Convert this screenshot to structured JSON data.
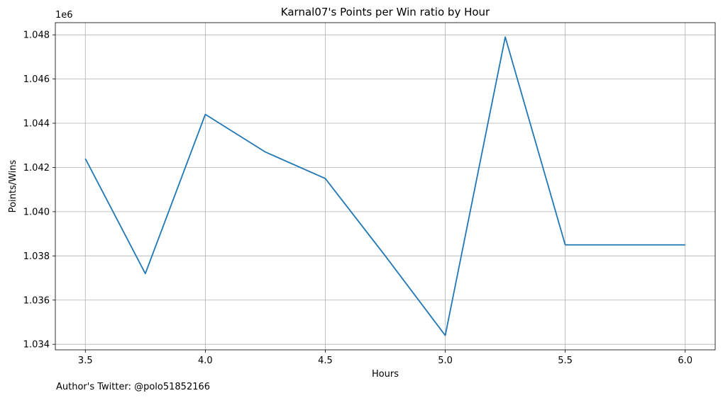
{
  "chart_data": {
    "type": "line",
    "title": "Karnal07's Points per Win ratio by Hour",
    "xlabel": "Hours",
    "ylabel": "Points/Wins",
    "y_offset_label": "1e6",
    "caption": "Author's Twitter: @polo51852166",
    "grid": true,
    "line_color": "#1f77b4",
    "grid_color": "#b0b0b0",
    "xlim": [
      3.375,
      6.125
    ],
    "ylim": [
      1.03375,
      1.04855
    ],
    "x_ticks": [
      3.5,
      4.0,
      4.5,
      5.0,
      5.5,
      6.0
    ],
    "x_tick_labels": [
      "3.5",
      "4.0",
      "4.5",
      "5.0",
      "5.5",
      "6.0"
    ],
    "y_ticks": [
      1.034,
      1.036,
      1.038,
      1.04,
      1.042,
      1.044,
      1.046,
      1.048
    ],
    "y_tick_labels": [
      "1.034",
      "1.036",
      "1.038",
      "1.040",
      "1.042",
      "1.044",
      "1.046",
      "1.048"
    ],
    "series": [
      {
        "x": [
          3.5,
          3.75,
          4.0,
          4.25,
          4.5,
          4.75,
          5.0,
          5.25,
          5.5,
          5.75,
          6.0
        ],
        "y": [
          1.0424,
          1.0372,
          1.0444,
          1.0427,
          1.0415,
          1.038,
          1.0344,
          1.0479,
          1.0385,
          1.0385,
          1.0385
        ]
      }
    ]
  }
}
